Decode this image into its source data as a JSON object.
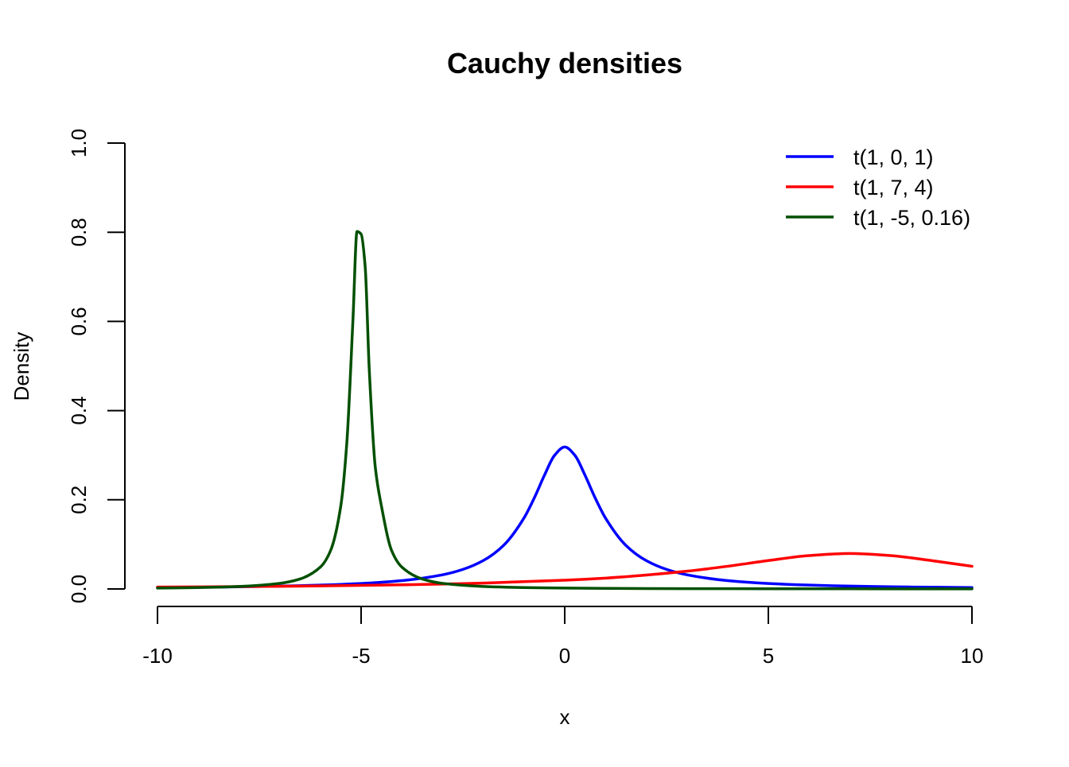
{
  "chart_data": {
    "type": "line",
    "title": "Cauchy densities",
    "xlabel": "x",
    "ylabel": "Density",
    "xlim": [
      -10,
      10
    ],
    "ylim": [
      0,
      1
    ],
    "x_ticks": [
      -10,
      -5,
      0,
      5,
      10
    ],
    "x_tick_labels": [
      "-10",
      "-5",
      "0",
      "5",
      "10"
    ],
    "y_ticks": [
      0,
      0.2,
      0.4,
      0.6,
      0.8,
      1.0
    ],
    "y_tick_labels": [
      "0.0",
      "0.2",
      "0.4",
      "0.6",
      "0.8",
      "1.0"
    ],
    "grid": false,
    "legend_position": "top-right",
    "series": [
      {
        "name": "t(1, 0, 1)",
        "color": "#0000FF",
        "x": [
          -10,
          -9,
          -8,
          -7,
          -6,
          -5,
          -4,
          -3,
          -2.5,
          -2,
          -1.5,
          -1,
          -0.75,
          -0.5,
          -0.25,
          0,
          0.25,
          0.5,
          0.75,
          1,
          1.5,
          2,
          2.5,
          3,
          4,
          5,
          6,
          7,
          8,
          9,
          10
        ],
        "y": [
          0.0032,
          0.0039,
          0.0049,
          0.0064,
          0.0086,
          0.0122,
          0.0187,
          0.0318,
          0.0439,
          0.0637,
          0.0979,
          0.1592,
          0.2037,
          0.2546,
          0.2996,
          0.3183,
          0.2996,
          0.2546,
          0.2037,
          0.1592,
          0.0979,
          0.0637,
          0.0439,
          0.0318,
          0.0187,
          0.0122,
          0.0086,
          0.0064,
          0.0049,
          0.0039,
          0.0032
        ]
      },
      {
        "name": "t(1, 7, 4)",
        "color": "#FF0000",
        "x": [
          -10,
          -8,
          -6,
          -4,
          -2,
          0,
          1,
          2,
          3,
          4,
          5,
          6,
          7,
          8,
          9,
          10
        ],
        "y": [
          0.0042,
          0.0053,
          0.0069,
          0.0093,
          0.0132,
          0.0196,
          0.0243,
          0.0311,
          0.0398,
          0.0509,
          0.0637,
          0.0749,
          0.0796,
          0.0749,
          0.0637,
          0.0509
        ]
      },
      {
        "name": "t(1, -5, 0.16)",
        "color": "#005000",
        "x": [
          -10,
          -9,
          -8,
          -7,
          -6.5,
          -6,
          -5.75,
          -5.5,
          -5.35,
          -5.2,
          -5.1,
          -5,
          -4.9,
          -4.8,
          -4.65,
          -4.5,
          -4.25,
          -4,
          -3.5,
          -3,
          -2,
          -1,
          0,
          2,
          4,
          6,
          8,
          10
        ],
        "y": [
          0.002,
          0.0032,
          0.0056,
          0.0126,
          0.0224,
          0.0491,
          0.086,
          0.1855,
          0.3288,
          0.6046,
          0.8018,
          0.7958,
          0.7225,
          0.4923,
          0.2714,
          0.1855,
          0.086,
          0.0491,
          0.0224,
          0.0126,
          0.0056,
          0.0032,
          0.002,
          0.001,
          0.0006,
          0.0004,
          0.0003,
          0.0002
        ]
      }
    ]
  }
}
